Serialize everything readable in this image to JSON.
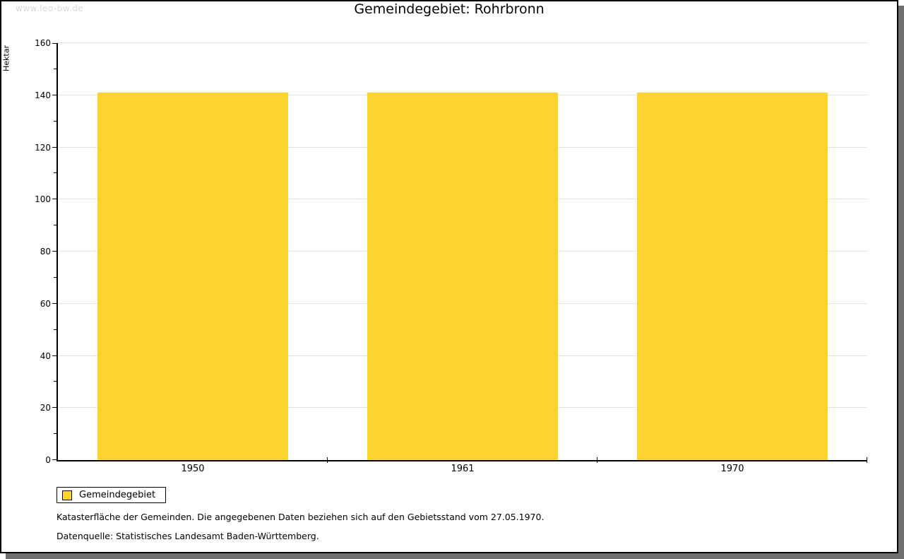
{
  "watermark": "www.leo-bw.de",
  "title": "Gemeindegebiet: Rohrbronn",
  "chart_data": {
    "type": "bar",
    "title": "Gemeindegebiet: Rohrbronn",
    "categories": [
      "1950",
      "1961",
      "1970"
    ],
    "series": [
      {
        "name": "Gemeindegebiet",
        "values": [
          141,
          141,
          141
        ]
      }
    ],
    "xlabel": "",
    "ylabel": "Hektar",
    "ylim": [
      0,
      160
    ],
    "ytick_major_step": 20,
    "ytick_minor_step": 10,
    "grid": "horizontal-major",
    "legend_position": "bottom-left",
    "bar_color": "#fdd32d"
  },
  "legend": {
    "items": [
      {
        "label": "Gemeindegebiet",
        "color": "#fdd32d"
      }
    ]
  },
  "footnotes": [
    "Katasterfläche der Gemeinden. Die angegebenen Daten beziehen sich auf den Gebietsstand vom 27.05.1970.",
    "Datenquelle: Statistisches Landesamt Baden-Württemberg."
  ],
  "colors": {
    "bar": "#fdd32d",
    "grid": "#e4e4e4",
    "axis": "#000000",
    "frame_border": "#000000",
    "frame_shadow": "#6f6f6f",
    "watermark": "#d9d9d9",
    "background": "#ffffff"
  }
}
